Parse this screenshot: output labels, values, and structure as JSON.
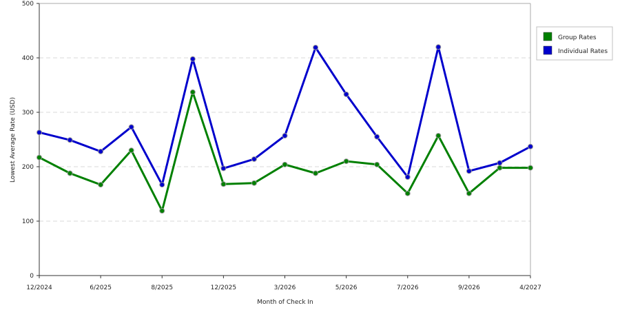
{
  "chart_data": {
    "type": "line",
    "xlabel": "Month of Check In",
    "ylabel": "Lowest Average Rate (USD)",
    "ylim": [
      0,
      500
    ],
    "yticks": [
      0,
      100,
      200,
      300,
      400,
      500
    ],
    "grid": "horizontal dashed",
    "legend_position": "right",
    "x_tick_labels": [
      "12/2024",
      "6/2025",
      "8/2025",
      "12/2025",
      "3/2026",
      "5/2026",
      "7/2026",
      "9/2026",
      "4/2027"
    ],
    "x_tick_indices": [
      0,
      2,
      4,
      6,
      8,
      10,
      12,
      14,
      16
    ],
    "series": [
      {
        "name": "Group Rates",
        "color": "#008000",
        "values": [
          217,
          188,
          167,
          230,
          119,
          337,
          168,
          170,
          204,
          188,
          210,
          204,
          151,
          257,
          151,
          198,
          198
        ]
      },
      {
        "name": "Individual Rates",
        "color": "#0000cc",
        "values": [
          263,
          249,
          228,
          273,
          167,
          398,
          197,
          214,
          257,
          419,
          333,
          255,
          181,
          420,
          192,
          207,
          237
        ]
      }
    ]
  }
}
